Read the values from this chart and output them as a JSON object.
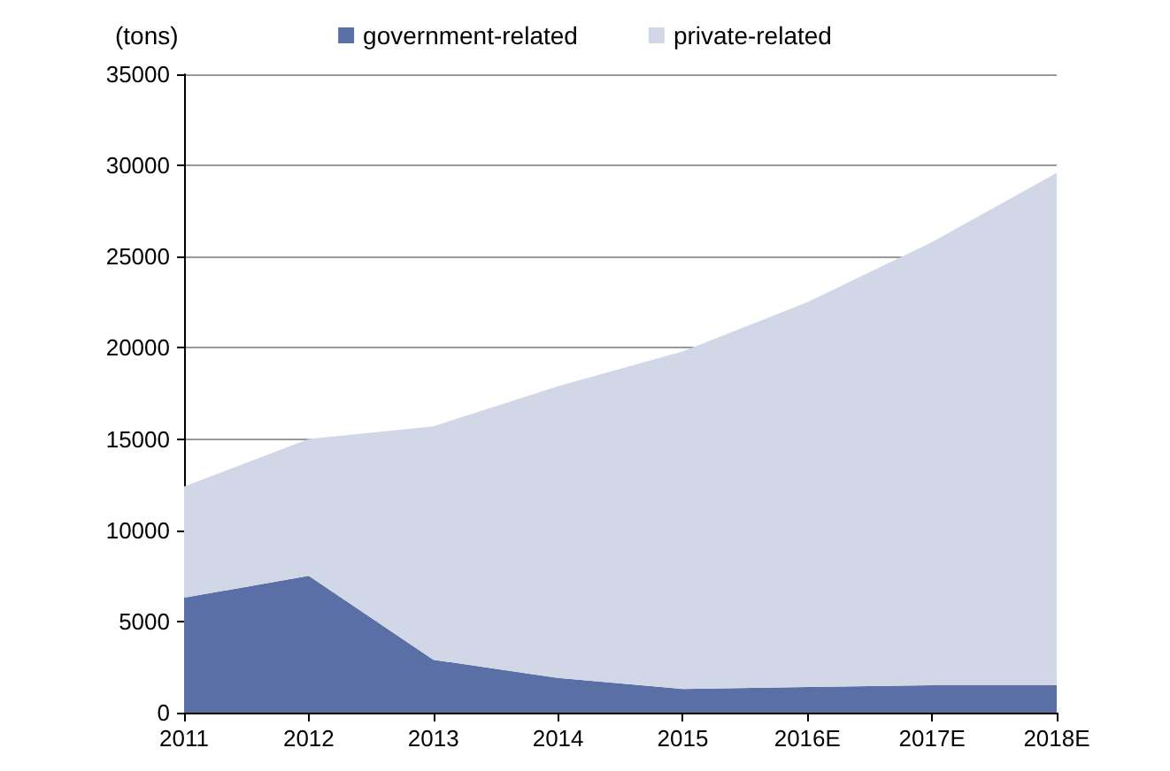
{
  "chart_data": {
    "type": "area",
    "stacked": true,
    "ylabel": "(tons)",
    "categories": [
      "2011",
      "2012",
      "2013",
      "2014",
      "2015",
      "2016E",
      "2017E",
      "2018E"
    ],
    "series": [
      {
        "name": "government-related",
        "color": "#5a6fa6",
        "values": [
          6300,
          7500,
          2900,
          1900,
          1300,
          1400,
          1500,
          1500
        ]
      },
      {
        "name": "private-related",
        "color": "#d1d7e6",
        "values": [
          6100,
          7500,
          12800,
          16000,
          18500,
          21100,
          24300,
          28100
        ]
      }
    ],
    "ylim": [
      0,
      35000
    ],
    "yticks": [
      0,
      5000,
      10000,
      15000,
      20000,
      25000,
      30000,
      35000
    ],
    "grid": "y",
    "legend": "top"
  }
}
